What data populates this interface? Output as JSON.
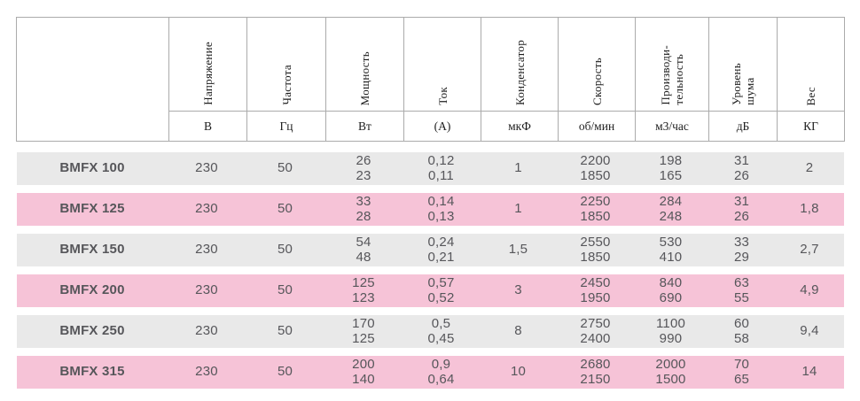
{
  "table": {
    "colors": {
      "row_gray": "#e9e9e9",
      "row_pink": "#f6c3d7",
      "text": "#56565a",
      "border": "#ababab",
      "header_text": "#1c1c1c"
    },
    "columns": [
      {
        "label": "Напряжение",
        "unit": "В"
      },
      {
        "label": "Частота",
        "unit": "Гц"
      },
      {
        "label": "Мощность",
        "unit": "Вт"
      },
      {
        "label": "Ток",
        "unit": "(А)"
      },
      {
        "label": "Конденсатор",
        "unit": "мкФ"
      },
      {
        "label": "Скорость",
        "unit": "об/мин"
      },
      {
        "label": "Производи-\nтельность",
        "unit": "м3/час"
      },
      {
        "label": "Уровень\nшума",
        "unit": "дБ"
      },
      {
        "label": "Вес",
        "unit": "КГ"
      }
    ],
    "rows": [
      {
        "model": "BMFX 100",
        "values": [
          "230",
          "50",
          "26\n23",
          "0,12\n0,11",
          "1",
          "2200\n1850",
          "198\n165",
          "31\n26",
          "2"
        ]
      },
      {
        "model": "BMFX 125",
        "values": [
          "230",
          "50",
          "33\n28",
          "0,14\n0,13",
          "1",
          "2250\n1850",
          "284\n248",
          "31\n26",
          "1,8"
        ]
      },
      {
        "model": "BMFX 150",
        "values": [
          "230",
          "50",
          "54\n48",
          "0,24\n0,21",
          "1,5",
          "2550\n1850",
          "530\n410",
          "33\n29",
          "2,7"
        ]
      },
      {
        "model": "BMFX 200",
        "values": [
          "230",
          "50",
          "125\n123",
          "0,57\n0,52",
          "3",
          "2450\n1950",
          "840\n690",
          "63\n55",
          "4,9"
        ]
      },
      {
        "model": "BMFX 250",
        "values": [
          "230",
          "50",
          "170\n125",
          "0,5\n0,45",
          "8",
          "2750\n2400",
          "1100\n990",
          "60\n58",
          "9,4"
        ]
      },
      {
        "model": "BMFX 315",
        "values": [
          "230",
          "50",
          "200\n140",
          "0,9\n0,64",
          "10",
          "2680\n2150",
          "2000\n1500",
          "70\n65",
          "14"
        ]
      }
    ]
  }
}
